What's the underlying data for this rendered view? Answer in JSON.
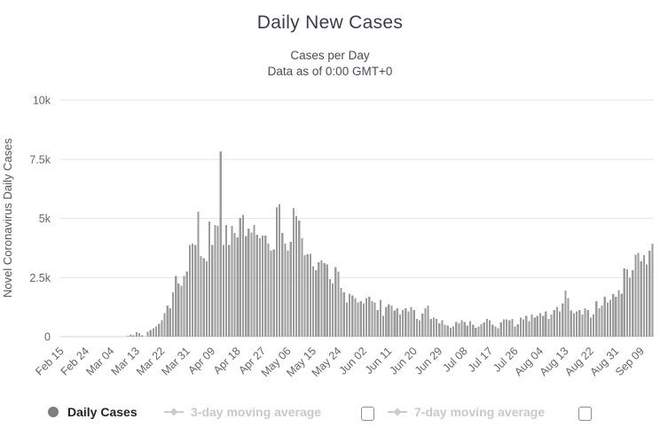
{
  "header": {
    "title": "Daily New Cases",
    "subtitle_line1": "Cases per Day",
    "subtitle_line2": "Data as of 0:00 GMT+0"
  },
  "legend": {
    "items": [
      {
        "label": "Daily Cases",
        "marker": "circle-icon",
        "enabled": true
      },
      {
        "label": "3-day moving average",
        "marker": "line-diamond-icon",
        "enabled": false,
        "checked": false
      },
      {
        "label": "7-day moving average",
        "marker": "line-diamond-icon",
        "enabled": false,
        "checked": false
      }
    ]
  },
  "chart_data": {
    "type": "bar",
    "title": "Daily New Cases",
    "subtitle": "Cases per Day / Data as of 0:00 GMT+0",
    "ylabel": "Novel Coronavirus Daily Cases",
    "xlabel": "",
    "ylim": [
      0,
      10000
    ],
    "ytick_labels": [
      "0",
      "2.5k",
      "5k",
      "7.5k",
      "10k"
    ],
    "ytick_values": [
      0,
      2500,
      5000,
      7500,
      10000
    ],
    "grid": "horizontal",
    "legend_position": "bottom",
    "bar_color": "#9b9b9b",
    "x_unit": "day",
    "x_start_label": "Feb 15",
    "x_tick_interval": 9,
    "x_tick_labels": [
      "Feb 15",
      "Feb 24",
      "Mar 04",
      "Mar 13",
      "Mar 22",
      "Mar 31",
      "Apr 09",
      "Apr 18",
      "Apr 27",
      "May 06",
      "May 15",
      "May 24",
      "Jun 02",
      "Jun 11",
      "Jun 20",
      "Jun 29",
      "Jul 08",
      "Jul 17",
      "Jul 26",
      "Aug 04",
      "Aug 13",
      "Aug 22",
      "Aug 31",
      "Sep 09"
    ],
    "series_name": "Daily Cases",
    "values": [
      0,
      0,
      0,
      0,
      0,
      0,
      0,
      0,
      0,
      0,
      0,
      0,
      0,
      0,
      0,
      0,
      0,
      0,
      0,
      0,
      0,
      0,
      0,
      0,
      40,
      90,
      60,
      190,
      150,
      60,
      0,
      210,
      290,
      350,
      440,
      550,
      690,
      1000,
      1310,
      1190,
      1875,
      2560,
      2250,
      2150,
      2560,
      2750,
      3875,
      3940,
      3875,
      5275,
      3400,
      3310,
      3190,
      4875,
      3875,
      4725,
      4690,
      7830,
      3875,
      4725,
      3875,
      4690,
      4375,
      4190,
      5025,
      5150,
      4250,
      4560,
      4400,
      4725,
      4300,
      4150,
      4275,
      4275,
      3940,
      3625,
      3690,
      5475,
      5600,
      4375,
      3940,
      3625,
      4000,
      5440,
      5100,
      4900,
      4150,
      3440,
      3475,
      3500,
      2975,
      2810,
      3150,
      3225,
      3100,
      3060,
      2440,
      2250,
      2940,
      2750,
      2060,
      1875,
      1440,
      1810,
      1750,
      1625,
      1440,
      1500,
      1400,
      1625,
      1690,
      1500,
      1440,
      1125,
      1560,
      875,
      1250,
      1375,
      1310,
      1100,
      1190,
      940,
      1125,
      1190,
      1060,
      1250,
      1125,
      750,
      690,
      975,
      1190,
      1310,
      750,
      810,
      750,
      560,
      690,
      500,
      475,
      375,
      440,
      625,
      560,
      690,
      625,
      475,
      650,
      500,
      375,
      440,
      525,
      600,
      750,
      690,
      500,
      440,
      350,
      600,
      725,
      725,
      690,
      750,
      440,
      525,
      810,
      725,
      875,
      650,
      940,
      810,
      875,
      1000,
      875,
      1060,
      750,
      940,
      1125,
      1250,
      1060,
      1400,
      1940,
      1625,
      1100,
      1000,
      1060,
      1125,
      940,
      1190,
      1125,
      810,
      940,
      1500,
      1190,
      1310,
      1690,
      1440,
      1560,
      1790,
      1690,
      1960,
      1810,
      2875,
      2840,
      2500,
      2810,
      3460,
      3540,
      3190,
      3440,
      3060,
      3640,
      3940
    ]
  },
  "colors": {
    "bar": "#9b9b9b",
    "grid_line": "#e6e6e6",
    "axis_line": "#ccd6eb",
    "axis_label": "#63636e",
    "title": "#3c3c4c",
    "subtitle": "#4b4b59",
    "y_axis_title": "#55555f",
    "legend_enabled_text": "#23232d",
    "legend_disabled_text": "#c9c9c9",
    "legend_circle": "#7d7d7d",
    "legend_diamond": "#cccccc",
    "checkbox_border": "#8d8d8d"
  }
}
